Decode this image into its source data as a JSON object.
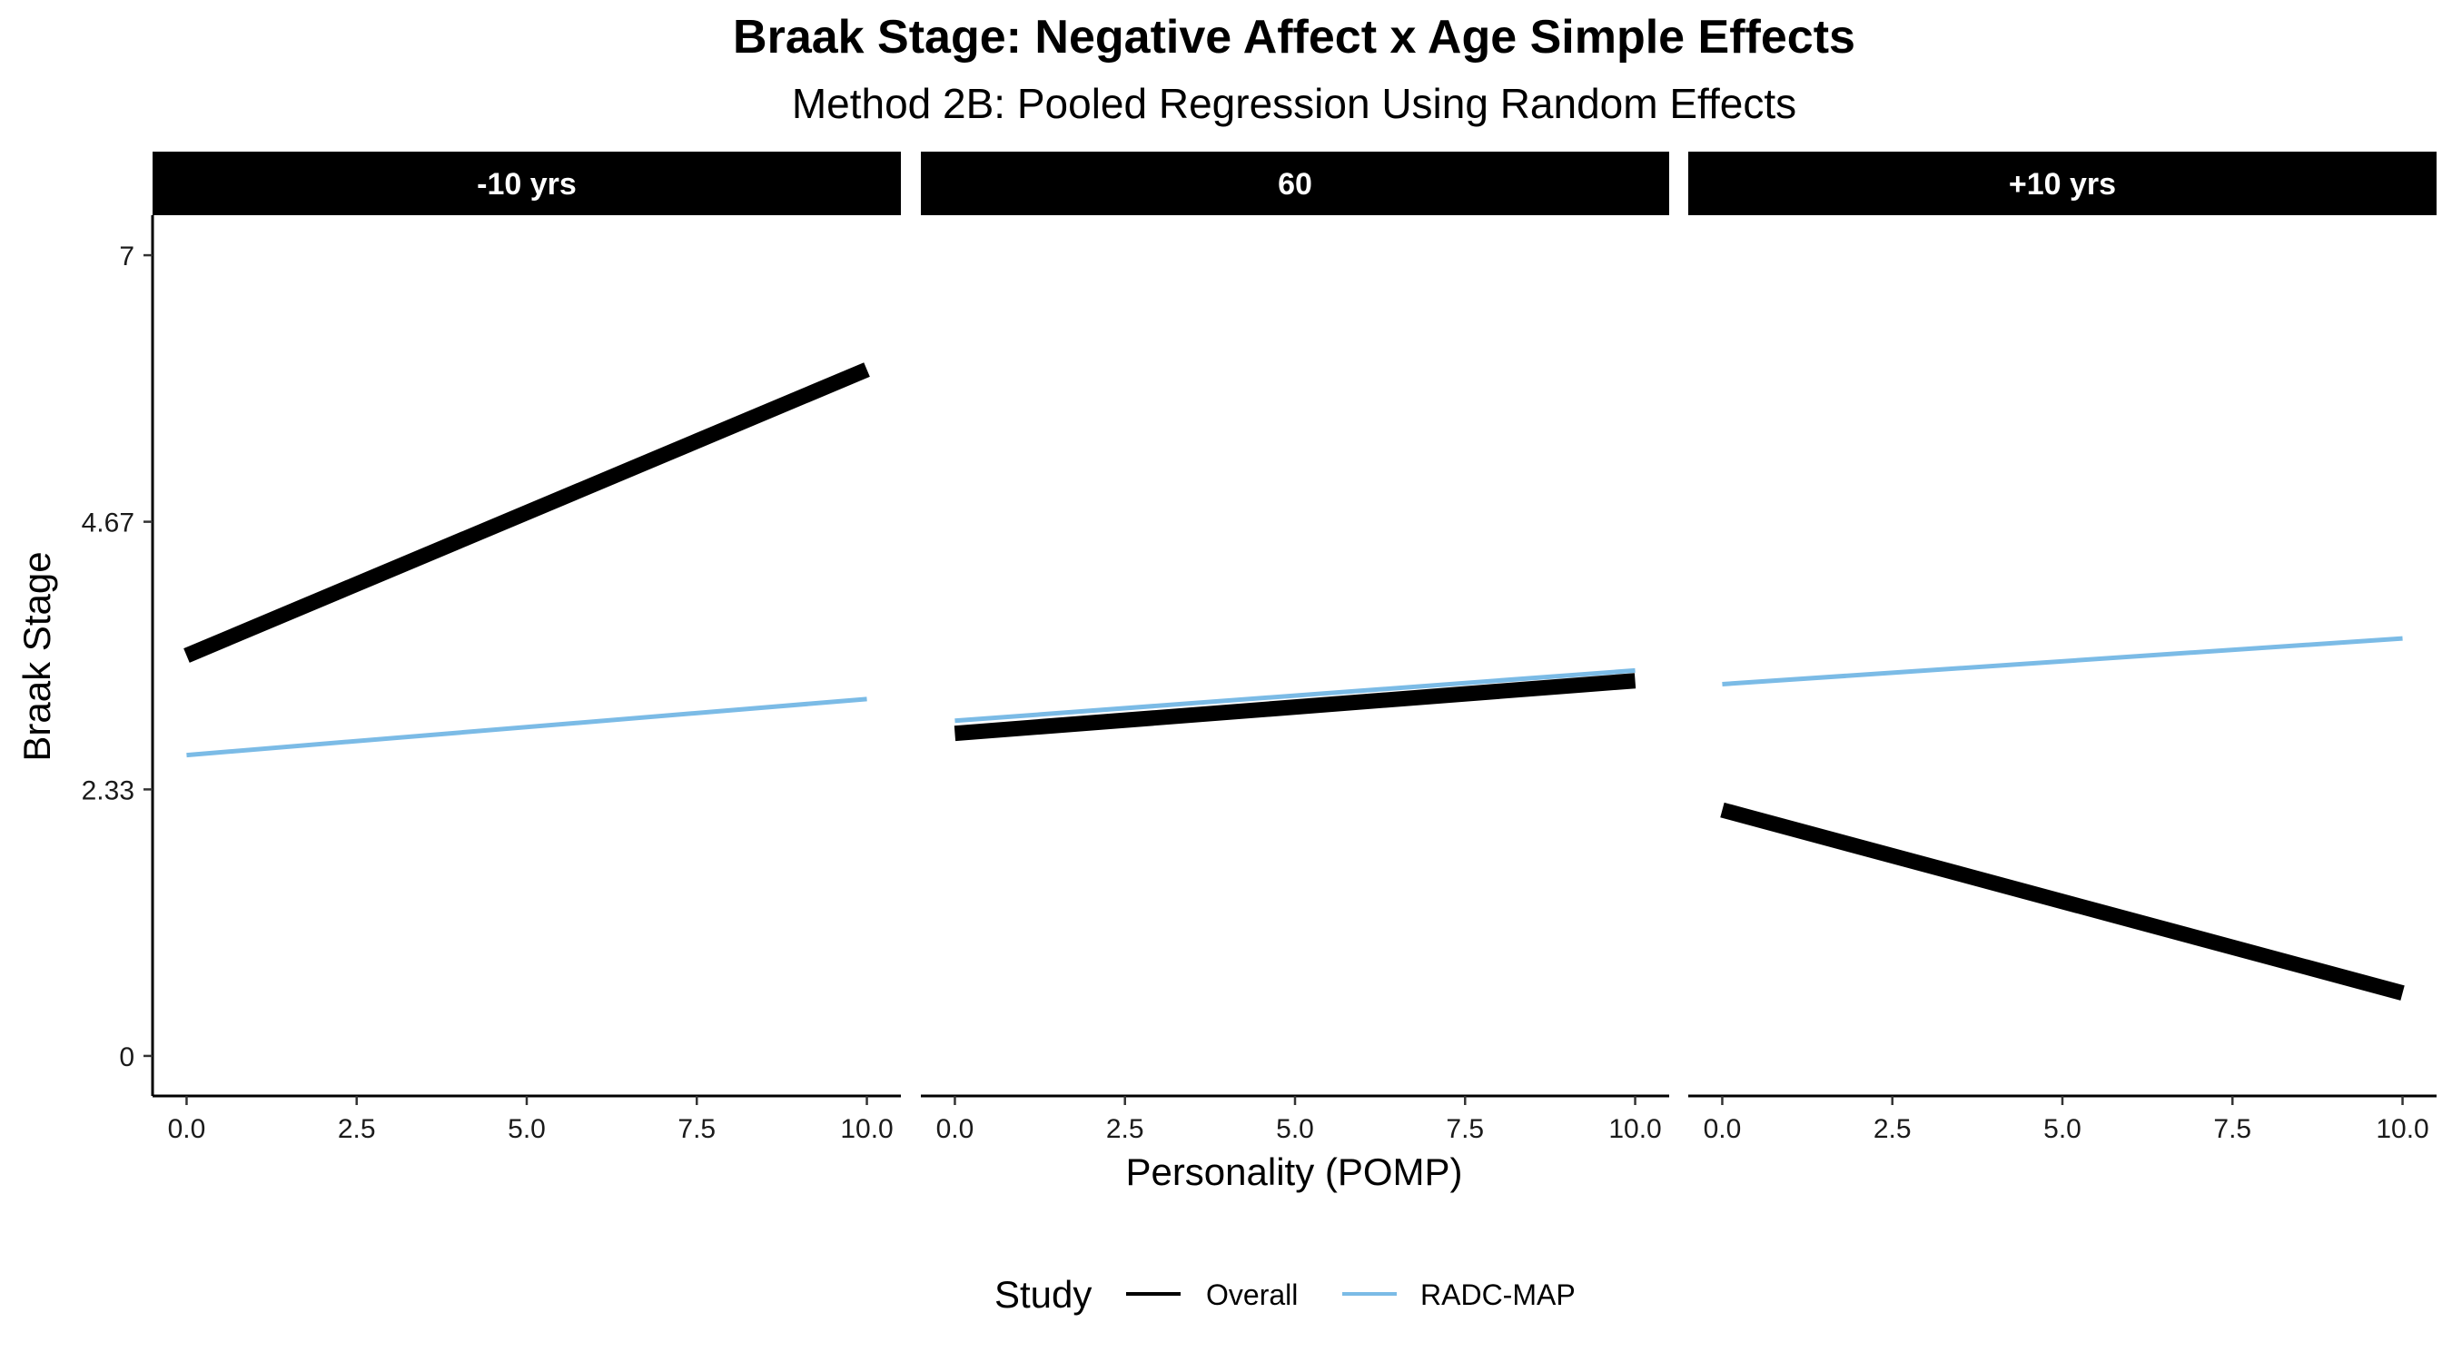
{
  "chart_data": {
    "type": "line",
    "title": "Braak Stage: Negative Affect x Age Simple Effects",
    "subtitle": "Method 2B: Pooled Regression Using Random Effects",
    "xlabel": "Personality (POMP)",
    "ylabel": "Braak Stage",
    "xlim": [
      -0.5,
      10.5
    ],
    "ylim": [
      -0.35,
      7.35
    ],
    "x_ticks": [
      0,
      2.5,
      5,
      7.5,
      10
    ],
    "x_tick_labels": [
      "0.0",
      "2.5",
      "5.0",
      "7.5",
      "10.0"
    ],
    "y_ticks": [
      0,
      2.33,
      4.67,
      7
    ],
    "y_tick_labels": [
      "0",
      "2.33",
      "4.67",
      "7"
    ],
    "grid": false,
    "legend": {
      "title": "Study",
      "position": "bottom",
      "entries": [
        {
          "label": "Overall",
          "color": "#000000"
        },
        {
          "label": "RADC-MAP",
          "color": "#7BBBE6"
        }
      ]
    },
    "panels": [
      {
        "label": "-10 yrs",
        "series": [
          {
            "name": "Overall",
            "color": "#000000",
            "x": [
              0,
              10
            ],
            "y": [
              3.5,
              6.0
            ]
          },
          {
            "name": "RADC-MAP",
            "color": "#7BBBE6",
            "x": [
              0,
              10
            ],
            "y": [
              2.63,
              3.12
            ]
          }
        ]
      },
      {
        "label": "60",
        "series": [
          {
            "name": "Overall",
            "color": "#000000",
            "x": [
              0,
              10
            ],
            "y": [
              2.82,
              3.28
            ]
          },
          {
            "name": "RADC-MAP",
            "color": "#7BBBE6",
            "x": [
              0,
              10
            ],
            "y": [
              2.93,
              3.37
            ]
          }
        ]
      },
      {
        "label": "+10 yrs",
        "series": [
          {
            "name": "Overall",
            "color": "#000000",
            "x": [
              0,
              10
            ],
            "y": [
              2.15,
              0.55
            ]
          },
          {
            "name": "RADC-MAP",
            "color": "#7BBBE6",
            "x": [
              0,
              10
            ],
            "y": [
              3.25,
              3.65
            ]
          }
        ]
      }
    ]
  }
}
